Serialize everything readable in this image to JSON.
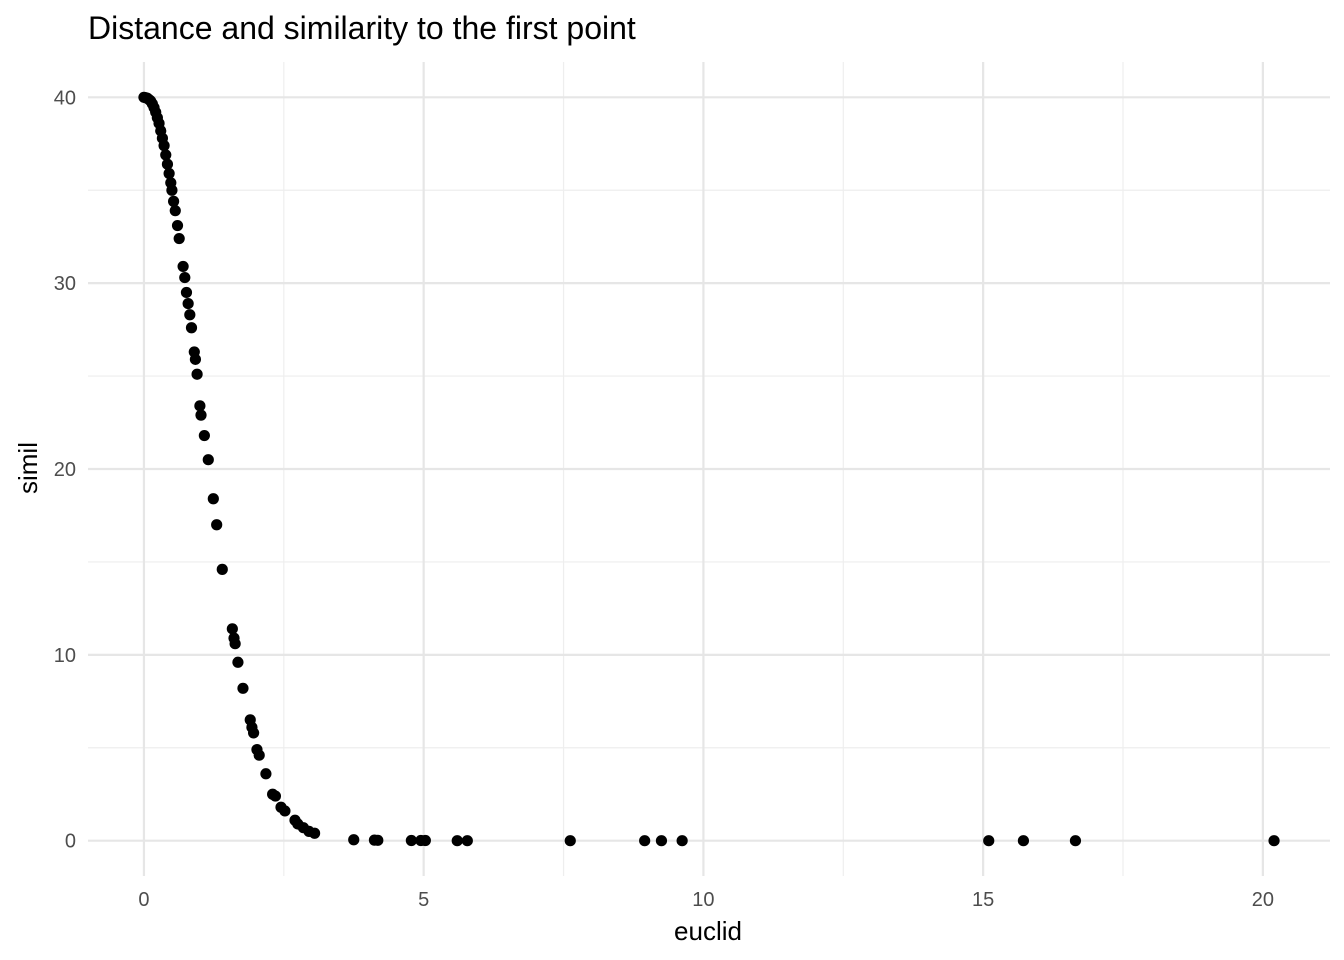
{
  "chart_data": {
    "type": "scatter",
    "title": "Distance and similarity to the first point",
    "xlabel": "euclid",
    "ylabel": "simil",
    "xlim": [
      -1.0,
      21.2
    ],
    "ylim": [
      -1.9,
      41.9
    ],
    "x_ticks": [
      0,
      5,
      10,
      15,
      20
    ],
    "y_ticks": [
      0,
      10,
      20,
      30,
      40
    ],
    "x_tick_labels": [
      "0",
      "5",
      "10",
      "15",
      "20"
    ],
    "y_tick_labels": [
      "0",
      "10",
      "20",
      "30",
      "40"
    ],
    "grid": true,
    "legend": "none",
    "point_color": "#000000",
    "points": [
      [
        0.0,
        40.0
      ],
      [
        0.03,
        39.98
      ],
      [
        0.06,
        39.95
      ],
      [
        0.09,
        39.88
      ],
      [
        0.12,
        39.8
      ],
      [
        0.15,
        39.65
      ],
      [
        0.18,
        39.45
      ],
      [
        0.21,
        39.2
      ],
      [
        0.24,
        38.9
      ],
      [
        0.27,
        38.6
      ],
      [
        0.3,
        38.2
      ],
      [
        0.33,
        37.8
      ],
      [
        0.36,
        37.4
      ],
      [
        0.39,
        36.9
      ],
      [
        0.42,
        36.4
      ],
      [
        0.45,
        35.9
      ],
      [
        0.48,
        35.4
      ],
      [
        0.5,
        35.0
      ],
      [
        0.53,
        34.4
      ],
      [
        0.56,
        33.9
      ],
      [
        0.6,
        33.1
      ],
      [
        0.63,
        32.4
      ],
      [
        0.7,
        30.9
      ],
      [
        0.73,
        30.3
      ],
      [
        0.76,
        29.5
      ],
      [
        0.79,
        28.9
      ],
      [
        0.82,
        28.3
      ],
      [
        0.85,
        27.6
      ],
      [
        0.9,
        26.3
      ],
      [
        0.92,
        25.9
      ],
      [
        0.95,
        25.1
      ],
      [
        1.0,
        23.4
      ],
      [
        1.02,
        22.9
      ],
      [
        1.08,
        21.8
      ],
      [
        1.15,
        20.5
      ],
      [
        1.24,
        18.4
      ],
      [
        1.3,
        17.0
      ],
      [
        1.4,
        14.6
      ],
      [
        1.58,
        11.4
      ],
      [
        1.61,
        10.9
      ],
      [
        1.63,
        10.6
      ],
      [
        1.68,
        9.6
      ],
      [
        1.77,
        8.2
      ],
      [
        1.9,
        6.5
      ],
      [
        1.93,
        6.1
      ],
      [
        1.96,
        5.8
      ],
      [
        2.02,
        4.9
      ],
      [
        2.06,
        4.6
      ],
      [
        2.18,
        3.6
      ],
      [
        2.3,
        2.5
      ],
      [
        2.35,
        2.4
      ],
      [
        2.45,
        1.8
      ],
      [
        2.52,
        1.6
      ],
      [
        2.7,
        1.1
      ],
      [
        2.75,
        0.9
      ],
      [
        2.85,
        0.7
      ],
      [
        2.95,
        0.5
      ],
      [
        3.05,
        0.4
      ],
      [
        3.75,
        0.05
      ],
      [
        4.12,
        0.03
      ],
      [
        4.18,
        0.02
      ],
      [
        4.78,
        0.01
      ],
      [
        4.95,
        0.01
      ],
      [
        5.03,
        0.01
      ],
      [
        5.6,
        0.0
      ],
      [
        5.78,
        0.0
      ],
      [
        7.62,
        0.0
      ],
      [
        8.95,
        0.0
      ],
      [
        9.25,
        0.0
      ],
      [
        9.62,
        0.0
      ],
      [
        15.1,
        0.0
      ],
      [
        15.72,
        0.0
      ],
      [
        16.65,
        0.0
      ],
      [
        20.2,
        0.0
      ]
    ]
  }
}
